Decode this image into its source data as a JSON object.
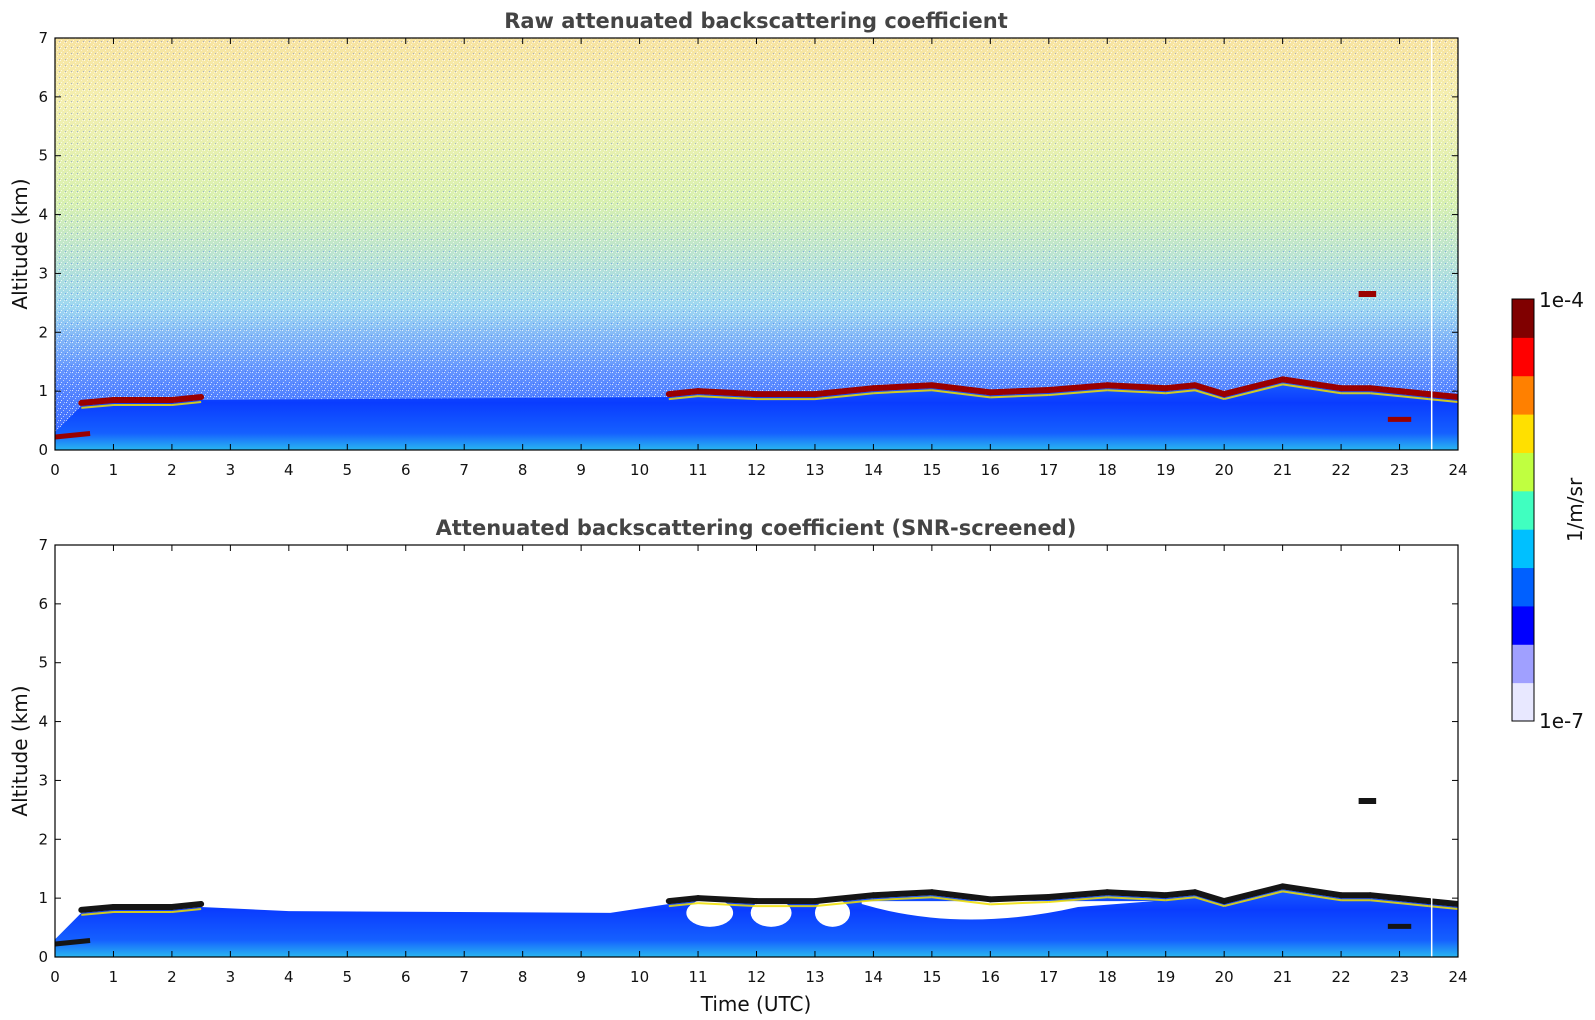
{
  "chart_data": [
    {
      "type": "heatmap",
      "title": "Raw attenuated backscattering coefficient",
      "xlabel": "",
      "ylabel": "Altitude (km)",
      "xlim": [
        0,
        24
      ],
      "ylim": [
        0,
        7
      ],
      "x_ticks": [
        "0",
        "1",
        "2",
        "3",
        "4",
        "5",
        "6",
        "7",
        "8",
        "9",
        "10",
        "11",
        "12",
        "13",
        "14",
        "15",
        "16",
        "17",
        "18",
        "19",
        "20",
        "21",
        "22",
        "23",
        "24"
      ],
      "y_ticks": [
        "0",
        "1",
        "2",
        "3",
        "4",
        "5",
        "6",
        "7"
      ],
      "screened": false,
      "cloud_layer": {
        "time": [
          0.45,
          1,
          2,
          2.5,
          10.5,
          11,
          12,
          13,
          14,
          15,
          16,
          17,
          18,
          19,
          19.5,
          20,
          21,
          22,
          22.5,
          23,
          23.5,
          24
        ],
        "altitude": [
          0.8,
          0.85,
          0.85,
          0.9,
          0.95,
          1.0,
          0.95,
          0.95,
          1.05,
          1.1,
          0.98,
          1.02,
          1.1,
          1.05,
          1.1,
          0.95,
          1.2,
          1.05,
          1.05,
          1.0,
          0.95,
          0.9
        ]
      },
      "isolated_cloud": {
        "time": [
          22.3,
          22.6
        ],
        "altitude": 2.65
      }
    },
    {
      "type": "heatmap",
      "title": "Attenuated backscattering coefficient (SNR-screened)",
      "xlabel": "Time (UTC)",
      "ylabel": "Altitude (km)",
      "xlim": [
        0,
        24
      ],
      "ylim": [
        0,
        7
      ],
      "x_ticks": [
        "0",
        "1",
        "2",
        "3",
        "4",
        "5",
        "6",
        "7",
        "8",
        "9",
        "10",
        "11",
        "12",
        "13",
        "14",
        "15",
        "16",
        "17",
        "18",
        "19",
        "20",
        "21",
        "22",
        "23",
        "24"
      ],
      "y_ticks": [
        "0",
        "1",
        "2",
        "3",
        "4",
        "5",
        "6",
        "7"
      ],
      "screened": true,
      "cloud_layer": {
        "time": [
          0.45,
          1,
          2,
          2.5,
          10.5,
          11,
          12,
          13,
          14,
          15,
          16,
          17,
          18,
          19,
          19.5,
          20,
          21,
          22,
          22.5,
          23,
          23.5,
          24
        ],
        "altitude": [
          0.8,
          0.85,
          0.85,
          0.9,
          0.95,
          1.0,
          0.95,
          0.95,
          1.05,
          1.1,
          0.98,
          1.02,
          1.1,
          1.05,
          1.1,
          0.95,
          1.2,
          1.05,
          1.05,
          1.0,
          0.95,
          0.9
        ]
      },
      "isolated_cloud": {
        "time": [
          22.3,
          22.6
        ],
        "altitude": 2.65
      }
    }
  ],
  "colorbar": {
    "label": "1/m/sr",
    "max_label": "1e-4",
    "min_label": "1e-7",
    "colors": [
      "#e8e8ff",
      "#a0a0ff",
      "#0000ff",
      "#0060ff",
      "#00c0ff",
      "#40ffc0",
      "#c0ff40",
      "#ffe000",
      "#ff8000",
      "#ff0000",
      "#800000"
    ]
  }
}
